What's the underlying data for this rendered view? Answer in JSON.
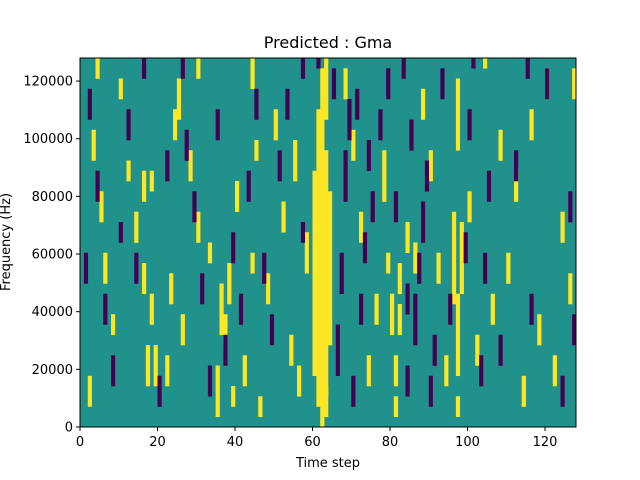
{
  "chart_data": {
    "type": "heatmap",
    "title": "Predicted : Gma",
    "xlabel": "Time step",
    "ylabel": "Frequency (Hz)",
    "xlim": [
      0,
      128
    ],
    "ylim": [
      0,
      128000
    ],
    "x_ticks": [
      0,
      20,
      40,
      60,
      80,
      100,
      120
    ],
    "y_ticks": [
      0,
      20000,
      40000,
      60000,
      80000,
      100000,
      120000
    ],
    "x_tick_labels": [
      "0",
      "20",
      "40",
      "60",
      "80",
      "100",
      "120"
    ],
    "y_tick_labels": [
      "0",
      "20000",
      "40000",
      "60000",
      "80000",
      "100000",
      "120000"
    ],
    "n_time_steps": 128,
    "n_freq_bins": 36,
    "levels": [
      {
        "value": 0,
        "color": "#440154"
      },
      {
        "value": 1,
        "color": "#21918c"
      },
      {
        "value": 2,
        "color": "#fde725"
      }
    ],
    "background_level": 1,
    "grid": false,
    "yellow_segments": [
      [
        62,
        0,
        34
      ],
      [
        61,
        2,
        30
      ],
      [
        63,
        3,
        26
      ],
      [
        60,
        5,
        24
      ],
      [
        64,
        8,
        22
      ],
      [
        63,
        1,
        3
      ],
      [
        63,
        30,
        35
      ],
      [
        97,
        1,
        2
      ],
      [
        97,
        5,
        8
      ],
      [
        97,
        9,
        12
      ],
      [
        96,
        12,
        20
      ],
      [
        98,
        13,
        19
      ],
      [
        97,
        27,
        33
      ],
      [
        104,
        36,
        36
      ],
      [
        81,
        1,
        2
      ],
      [
        81,
        4,
        6
      ],
      [
        82,
        9,
        11
      ],
      [
        84,
        17,
        19
      ],
      [
        86,
        15,
        17
      ],
      [
        79,
        15,
        16
      ],
      [
        80,
        9,
        12
      ],
      [
        82,
        13,
        15
      ],
      [
        78,
        22,
        26
      ],
      [
        17,
        4,
        7
      ],
      [
        19,
        4,
        7
      ],
      [
        18,
        10,
        12
      ],
      [
        16,
        13,
        15
      ],
      [
        22,
        4,
        6
      ],
      [
        23,
        12,
        14
      ],
      [
        35,
        1,
        5
      ],
      [
        36,
        9,
        13
      ],
      [
        38,
        12,
        15
      ],
      [
        37,
        8,
        10
      ],
      [
        39,
        2,
        3
      ],
      [
        42,
        4,
        6
      ],
      [
        44,
        15,
        16
      ],
      [
        40,
        21,
        23
      ],
      [
        16,
        22,
        24
      ],
      [
        18,
        23,
        24
      ],
      [
        30,
        18,
        20
      ],
      [
        28,
        24,
        26
      ],
      [
        33,
        16,
        17
      ],
      [
        25,
        30,
        33
      ],
      [
        45,
        26,
        27
      ],
      [
        58,
        15,
        18
      ],
      [
        55,
        24,
        27
      ],
      [
        52,
        19,
        21
      ],
      [
        50,
        28,
        30
      ],
      [
        48,
        12,
        14
      ],
      [
        54,
        6,
        8
      ],
      [
        56,
        3,
        5
      ],
      [
        46,
        1,
        2
      ],
      [
        44,
        33,
        35
      ],
      [
        8,
        9,
        10
      ],
      [
        6,
        14,
        16
      ],
      [
        12,
        24,
        25
      ],
      [
        14,
        18,
        20
      ],
      [
        10,
        32,
        33
      ],
      [
        26,
        8,
        10
      ],
      [
        24,
        28,
        30
      ],
      [
        30,
        34,
        36
      ],
      [
        102,
        6,
        8
      ],
      [
        106,
        10,
        12
      ],
      [
        110,
        14,
        16
      ],
      [
        112,
        22,
        24
      ],
      [
        116,
        28,
        30
      ],
      [
        120,
        32,
        34
      ],
      [
        124,
        18,
        20
      ],
      [
        118,
        8,
        10
      ],
      [
        122,
        4,
        6
      ],
      [
        126,
        12,
        14
      ],
      [
        108,
        26,
        28
      ],
      [
        114,
        2,
        4
      ],
      [
        100,
        20,
        22
      ],
      [
        90,
        24,
        26
      ],
      [
        92,
        14,
        16
      ],
      [
        88,
        30,
        32
      ],
      [
        94,
        4,
        6
      ],
      [
        3,
        26,
        28
      ],
      [
        5,
        20,
        22
      ],
      [
        2,
        2,
        4
      ],
      [
        4,
        34,
        36
      ],
      [
        127,
        32,
        34
      ],
      [
        74,
        4,
        6
      ],
      [
        76,
        10,
        12
      ],
      [
        72,
        18,
        20
      ],
      [
        70,
        26,
        28
      ],
      [
        68,
        32,
        34
      ]
    ],
    "purple_segments": [
      [
        66,
        5,
        9
      ],
      [
        67,
        13,
        16
      ],
      [
        68,
        22,
        26
      ],
      [
        69,
        28,
        31
      ],
      [
        70,
        2,
        4
      ],
      [
        72,
        10,
        12
      ],
      [
        73,
        16,
        18
      ],
      [
        74,
        25,
        27
      ],
      [
        75,
        20,
        22
      ],
      [
        71,
        30,
        32
      ],
      [
        86,
        8,
        12
      ],
      [
        87,
        14,
        16
      ],
      [
        88,
        18,
        21
      ],
      [
        89,
        23,
        25
      ],
      [
        90,
        2,
        4
      ],
      [
        85,
        27,
        29
      ],
      [
        91,
        6,
        8
      ],
      [
        84,
        11,
        13
      ],
      [
        84,
        3,
        5
      ],
      [
        43,
        22,
        24
      ],
      [
        41,
        10,
        12
      ],
      [
        39,
        16,
        18
      ],
      [
        37,
        6,
        8
      ],
      [
        35,
        28,
        30
      ],
      [
        33,
        3,
        5
      ],
      [
        31,
        12,
        14
      ],
      [
        29,
        20,
        22
      ],
      [
        27,
        26,
        28
      ],
      [
        26,
        34,
        36
      ],
      [
        47,
        14,
        16
      ],
      [
        49,
        8,
        10
      ],
      [
        51,
        24,
        26
      ],
      [
        53,
        30,
        32
      ],
      [
        57,
        18,
        19
      ],
      [
        2,
        30,
        32
      ],
      [
        4,
        22,
        24
      ],
      [
        6,
        10,
        12
      ],
      [
        8,
        4,
        6
      ],
      [
        10,
        18,
        19
      ],
      [
        12,
        28,
        30
      ],
      [
        14,
        14,
        16
      ],
      [
        16,
        34,
        36
      ],
      [
        20,
        2,
        4
      ],
      [
        22,
        24,
        26
      ],
      [
        100,
        28,
        30
      ],
      [
        104,
        14,
        16
      ],
      [
        108,
        6,
        8
      ],
      [
        112,
        24,
        26
      ],
      [
        116,
        10,
        12
      ],
      [
        120,
        32,
        34
      ],
      [
        124,
        2,
        4
      ],
      [
        126,
        20,
        22
      ],
      [
        101,
        36,
        36
      ],
      [
        115,
        34,
        36
      ],
      [
        93,
        32,
        34
      ],
      [
        95,
        10,
        12
      ],
      [
        99,
        16,
        18
      ],
      [
        103,
        4,
        6
      ],
      [
        105,
        22,
        24
      ],
      [
        77,
        28,
        30
      ],
      [
        79,
        32,
        34
      ],
      [
        81,
        20,
        22
      ],
      [
        83,
        34,
        36
      ],
      [
        61,
        36,
        36
      ],
      [
        57,
        34,
        36
      ],
      [
        65,
        32,
        34
      ],
      [
        45,
        30,
        32
      ],
      [
        1,
        14,
        16
      ],
      [
        127,
        8,
        10
      ]
    ]
  }
}
